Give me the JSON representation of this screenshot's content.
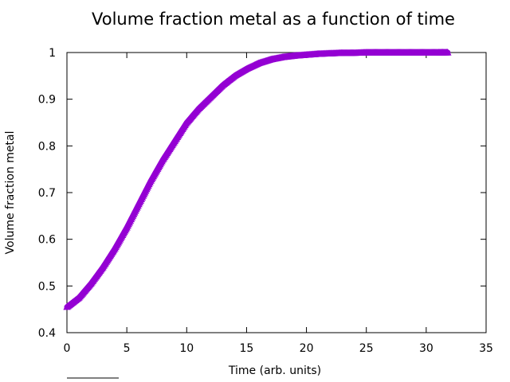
{
  "chart_data": {
    "type": "scatter",
    "title": "Volume fraction metal as a function of time",
    "xlabel": "Time (arb. units)",
    "ylabel": "Volume fraction metal",
    "xlim": [
      0,
      35
    ],
    "ylim": [
      0.4,
      1.0
    ],
    "xticks": [
      0,
      5,
      10,
      15,
      20,
      25,
      30,
      35
    ],
    "yticks": [
      0.4,
      0.5,
      0.6,
      0.7,
      0.8,
      0.9,
      1.0
    ],
    "xtick_labels": [
      "0",
      "5",
      "10",
      "15",
      "20",
      "25",
      "30",
      "35"
    ],
    "ytick_labels": [
      "0.4",
      "0.5",
      "0.6",
      "0.7",
      "0.8",
      "0.9",
      "1"
    ],
    "grid": false,
    "marker": "triangle",
    "series": [
      {
        "color": "#9400d3",
        "x": [
          0,
          1,
          2,
          3,
          4,
          5,
          6,
          7,
          8,
          9,
          10,
          11,
          12,
          13,
          14,
          15,
          16,
          17,
          18,
          19,
          20,
          21,
          22,
          23,
          24,
          25,
          26,
          27,
          28,
          29,
          30,
          31,
          31.8
        ],
        "y": [
          0.455,
          0.475,
          0.505,
          0.54,
          0.58,
          0.625,
          0.675,
          0.725,
          0.77,
          0.81,
          0.85,
          0.88,
          0.905,
          0.93,
          0.95,
          0.965,
          0.977,
          0.985,
          0.99,
          0.993,
          0.995,
          0.997,
          0.998,
          0.999,
          0.999,
          1.0,
          1.0,
          1.0,
          1.0,
          1.0,
          1.0,
          1.0,
          1.0
        ]
      }
    ]
  }
}
